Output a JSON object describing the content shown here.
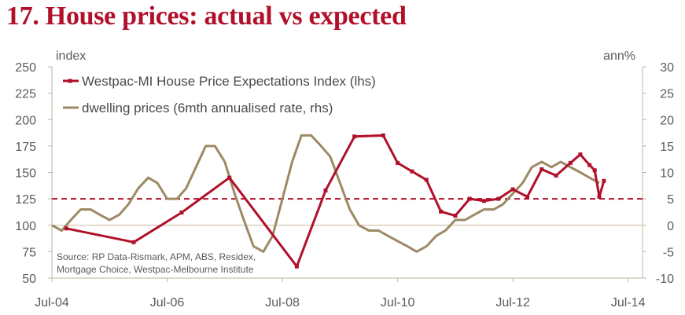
{
  "title": "17. House prices: actual vs expected",
  "chart_data": {
    "type": "line",
    "title": "17. House prices: actual vs expected",
    "ylabel_left": "index",
    "ylabel_right": "ann%",
    "x_ticks": [
      "Jul-04",
      "Jul-06",
      "Jul-08",
      "Jul-10",
      "Jul-12",
      "Jul-14"
    ],
    "xlim": [
      2004.5,
      2014.75
    ],
    "ylim_left": [
      50,
      250
    ],
    "ylim_right": [
      -10,
      30
    ],
    "y_ticks_left": [
      "50",
      "75",
      "100",
      "125",
      "150",
      "175",
      "200",
      "225",
      "250"
    ],
    "y_ticks_right": [
      "-10",
      "-5",
      "0",
      "5",
      "10",
      "15",
      "20",
      "25",
      "30"
    ],
    "legend_position": "top-left",
    "source": [
      "Source: RP Data-Rismark, APM, ABS, Residex,",
      "Mortgage Choice, Westpac-Melbourne Institute"
    ],
    "reference_lines": [
      {
        "axis": "left",
        "y": 100,
        "style": "solid",
        "color": "#c9b99a"
      },
      {
        "axis": "left",
        "y": 125,
        "style": "dashed",
        "color": "#b0102a"
      }
    ],
    "series": [
      {
        "name": "Westpac-MI House Price Expectations Index (lhs)",
        "axis": "left",
        "color": "#b0102a",
        "markers": true,
        "x": [
          2004.75,
          2005.92,
          2006.75,
          2007.58,
          2008.75,
          2009.25,
          2009.75,
          2010.25,
          2010.5,
          2010.75,
          2011.0,
          2011.25,
          2011.5,
          2011.75,
          2012.0,
          2012.25,
          2012.5,
          2012.75,
          2013.0,
          2013.25,
          2013.5,
          2013.67,
          2013.83,
          2013.92,
          2014.0,
          2014.08
        ],
        "values": [
          97,
          84,
          112,
          145,
          61,
          133,
          184,
          185,
          159,
          151,
          143,
          113,
          109,
          125,
          123,
          125,
          134,
          127,
          153,
          147,
          159,
          167,
          157,
          152,
          127,
          142
        ]
      },
      {
        "name": "dwelling prices (6mth annualised rate, rhs)",
        "axis": "right",
        "color": "#9c8a64",
        "markers": false,
        "x": [
          2004.5,
          2004.67,
          2004.83,
          2005.0,
          2005.17,
          2005.33,
          2005.5,
          2005.67,
          2005.83,
          2006.0,
          2006.17,
          2006.33,
          2006.5,
          2006.67,
          2006.83,
          2007.0,
          2007.17,
          2007.33,
          2007.5,
          2007.67,
          2007.83,
          2008.0,
          2008.17,
          2008.33,
          2008.5,
          2008.67,
          2008.83,
          2009.0,
          2009.17,
          2009.33,
          2009.5,
          2009.67,
          2009.83,
          2010.0,
          2010.17,
          2010.33,
          2010.5,
          2010.67,
          2010.83,
          2011.0,
          2011.17,
          2011.33,
          2011.5,
          2011.67,
          2011.83,
          2012.0,
          2012.17,
          2012.33,
          2012.5,
          2012.67,
          2012.83,
          2013.0,
          2013.17,
          2013.33,
          2013.5,
          2013.67,
          2013.83,
          2014.0
        ],
        "values": [
          0,
          -1,
          1,
          3,
          3,
          2,
          1,
          2,
          4,
          7,
          9,
          8,
          5,
          5,
          7,
          11,
          15,
          15,
          12,
          6,
          1,
          -4,
          -5,
          -2,
          5,
          12,
          17,
          17,
          15,
          13,
          8,
          3,
          0,
          -1,
          -1,
          -2,
          -3,
          -4,
          -5,
          -4,
          -2,
          -1,
          1,
          1,
          2,
          3,
          3,
          4,
          6,
          8,
          11,
          12,
          11,
          12,
          11,
          10,
          9,
          8
        ]
      }
    ]
  }
}
